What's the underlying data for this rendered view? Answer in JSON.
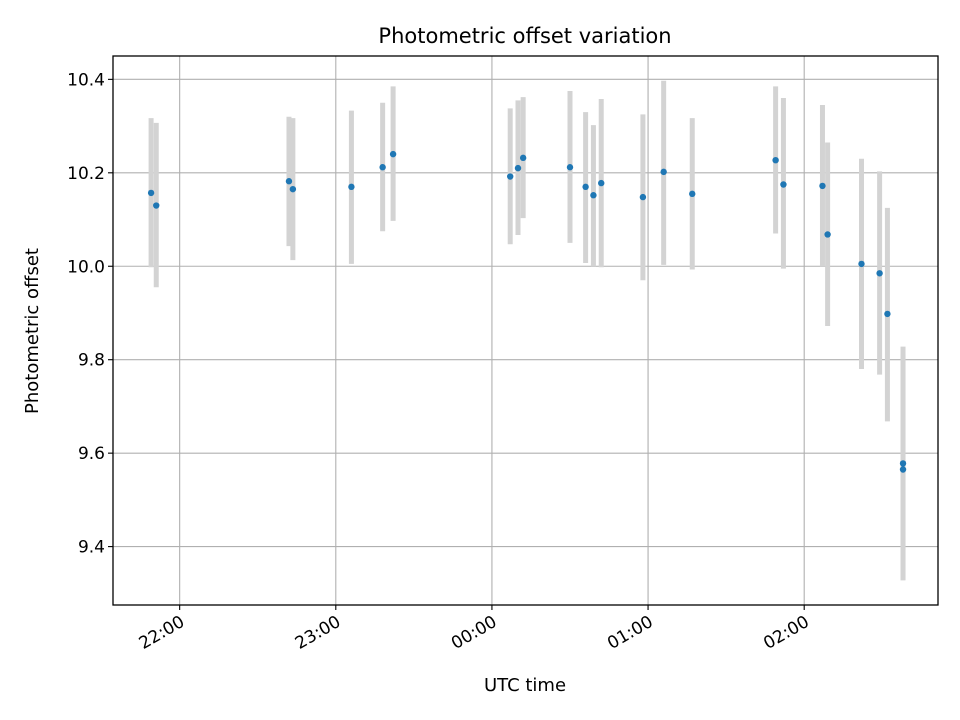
{
  "chart_data": {
    "type": "scatter",
    "title": "Photometric offset variation",
    "xlabel": "UTC time",
    "ylabel": "Photometric offset",
    "x_tick_labels": [
      "22:00",
      "23:00",
      "00:00",
      "01:00",
      "02:00"
    ],
    "x_tick_hours": [
      22,
      23,
      24,
      25,
      26
    ],
    "xlim_hours": [
      21.573,
      26.857
    ],
    "y_ticks": [
      9.4,
      9.6,
      9.8,
      10.0,
      10.2,
      10.4
    ],
    "y_tick_labels": [
      "9.4",
      "9.6",
      "9.8",
      "10.0",
      "10.2",
      "10.4"
    ],
    "ylim": [
      9.275,
      10.45
    ],
    "grid": true,
    "legend": "none",
    "series": [
      {
        "x_hours": [
          21.817,
          21.85,
          22.7,
          22.725,
          23.1,
          23.3,
          23.367,
          24.117,
          24.167,
          24.2,
          24.5,
          24.6,
          24.65,
          24.7,
          24.967,
          25.1,
          25.283,
          25.817,
          25.867,
          26.117,
          26.15,
          26.367,
          26.483,
          26.533,
          26.633,
          26.633
        ],
        "y": [
          10.157,
          10.13,
          10.182,
          10.165,
          10.17,
          10.212,
          10.24,
          10.192,
          10.21,
          10.232,
          10.212,
          10.17,
          10.152,
          10.178,
          10.148,
          10.202,
          10.155,
          10.227,
          10.175,
          10.172,
          10.068,
          10.005,
          9.985,
          9.898,
          9.578,
          9.565
        ],
        "yerr_low": [
          9.998,
          9.955,
          10.043,
          10.013,
          10.005,
          10.075,
          10.097,
          10.047,
          10.067,
          10.103,
          10.05,
          10.007,
          10.0,
          9.998,
          9.97,
          10.003,
          9.993,
          10.07,
          9.995,
          10.0,
          9.872,
          9.78,
          9.768,
          9.668,
          9.328,
          9.328
        ],
        "yerr_high": [
          10.317,
          10.307,
          10.32,
          10.317,
          10.333,
          10.35,
          10.385,
          10.338,
          10.355,
          10.362,
          10.375,
          10.33,
          10.302,
          10.358,
          10.325,
          10.397,
          10.317,
          10.385,
          10.36,
          10.345,
          10.265,
          10.23,
          10.203,
          10.125,
          9.828,
          9.812
        ]
      }
    ],
    "colors": {
      "marker": "#1f77b4",
      "errorbar": "#d3d3d3",
      "grid": "#b0b0b0",
      "axes": "#000000"
    }
  }
}
